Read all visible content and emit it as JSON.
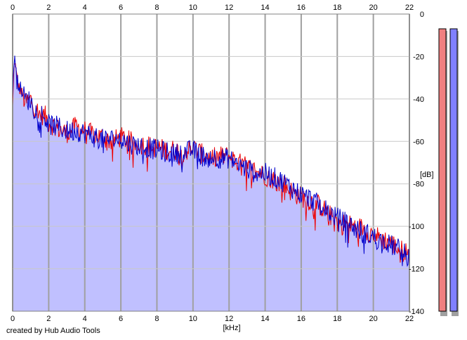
{
  "footer": {
    "credit": "created by Hub Audio Tools"
  },
  "chart_data": {
    "type": "area",
    "xlabel": "[kHz]",
    "ylabel": "[dB]",
    "xlim": [
      0,
      22
    ],
    "ylim": [
      -140,
      0
    ],
    "x_ticks": [
      "0",
      "2",
      "4",
      "6",
      "8",
      "10",
      "12",
      "14",
      "16",
      "18",
      "20",
      "22"
    ],
    "y_ticks": [
      "0",
      "-20",
      "-40",
      "-60",
      "-80",
      "-100",
      "-120",
      "-140"
    ],
    "grid": true,
    "colors": {
      "fill": "#c0c0ff",
      "left_channel": "#ee0000",
      "right_channel": "#0000cc",
      "grid": "#a0a0a0",
      "meter_left": "#f08080",
      "meter_right": "#8080ff"
    },
    "series": [
      {
        "color": "#ee0000",
        "x": [
          0.0,
          0.1,
          0.2,
          0.3,
          0.5,
          0.7,
          1.0,
          1.2,
          1.5,
          1.8,
          2.0,
          2.5,
          3.0,
          3.5,
          4.0,
          4.5,
          5.0,
          5.5,
          6.0,
          6.5,
          7.0,
          7.5,
          8.0,
          8.5,
          9.0,
          9.5,
          10.0,
          10.5,
          11.0,
          11.5,
          12.0,
          12.5,
          13.0,
          13.5,
          14.0,
          14.5,
          15.0,
          15.5,
          16.0,
          16.5,
          17.0,
          17.5,
          18.0,
          18.5,
          19.0,
          19.5,
          20.0,
          20.5,
          21.0,
          21.5,
          22.0
        ],
        "y": [
          -44,
          -20,
          -28,
          -34,
          -37,
          -42,
          -40,
          -44,
          -47,
          -48,
          -51,
          -54,
          -56,
          -53,
          -55,
          -57,
          -58,
          -60,
          -58,
          -60,
          -61,
          -62,
          -63,
          -64,
          -64,
          -65,
          -63,
          -66,
          -68,
          -67,
          -67,
          -70,
          -72,
          -74,
          -76,
          -78,
          -80,
          -84,
          -86,
          -88,
          -90,
          -94,
          -98,
          -99,
          -100,
          -101,
          -104,
          -106,
          -108,
          -111,
          -113
        ]
      },
      {
        "color": "#0000cc",
        "x": [
          0.0,
          0.1,
          0.2,
          0.3,
          0.5,
          0.7,
          1.0,
          1.2,
          1.5,
          1.8,
          2.0,
          2.5,
          3.0,
          3.5,
          4.0,
          4.5,
          5.0,
          5.5,
          6.0,
          6.5,
          7.0,
          7.5,
          8.0,
          8.5,
          9.0,
          9.5,
          10.0,
          10.5,
          11.0,
          11.5,
          12.0,
          12.5,
          13.0,
          13.5,
          14.0,
          14.5,
          15.0,
          15.5,
          16.0,
          16.5,
          17.0,
          17.5,
          18.0,
          18.5,
          19.0,
          19.5,
          20.0,
          20.5,
          21.0,
          21.5,
          22.0
        ],
        "y": [
          -40,
          -18,
          -26,
          -32,
          -36,
          -40,
          -41,
          -45,
          -46,
          -49,
          -52,
          -53,
          -55,
          -55,
          -56,
          -58,
          -59,
          -59,
          -59,
          -61,
          -62,
          -63,
          -64,
          -65,
          -66,
          -65,
          -64,
          -67,
          -67,
          -68,
          -68,
          -71,
          -73,
          -75,
          -75,
          -77,
          -79,
          -82,
          -85,
          -87,
          -90,
          -93,
          -96,
          -98,
          -101,
          -103,
          -105,
          -107,
          -109,
          -111,
          -115
        ]
      }
    ],
    "level_meters": [
      {
        "color": "#f08080"
      },
      {
        "color": "#8080ff"
      }
    ]
  }
}
